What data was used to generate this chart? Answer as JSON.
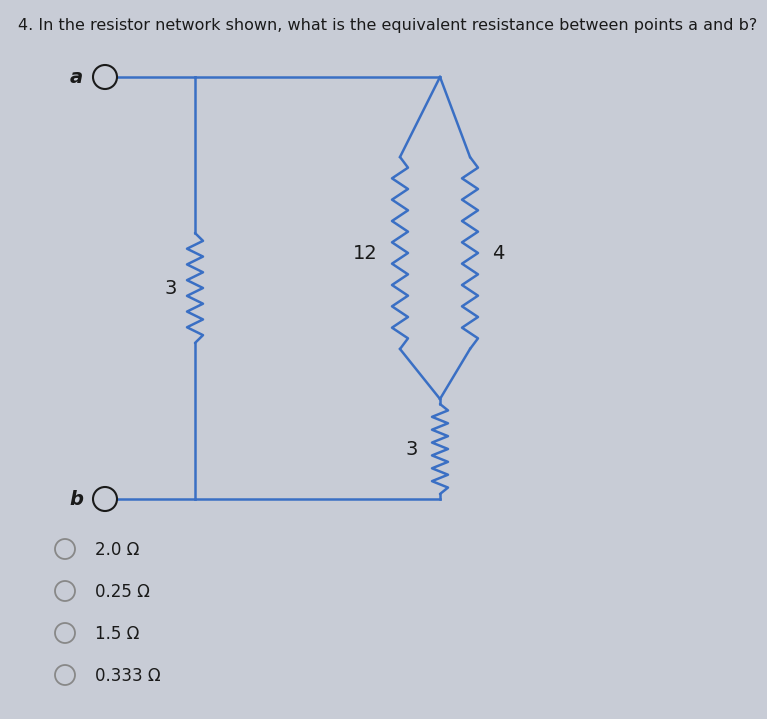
{
  "title": "4. In the resistor network shown, what is the equivalent resistance between points a and b?",
  "title_fontsize": 11.5,
  "bg_color": "#c8ccd6",
  "circuit_color": "#3a6fc4",
  "text_color": "#1a1a1a",
  "label_a": "a",
  "label_b": "b",
  "choices": [
    "2.0 Ω",
    "0.25 Ω",
    "1.5 Ω",
    "0.333 Ω"
  ],
  "choice_fontsize": 12,
  "lw": 1.8
}
